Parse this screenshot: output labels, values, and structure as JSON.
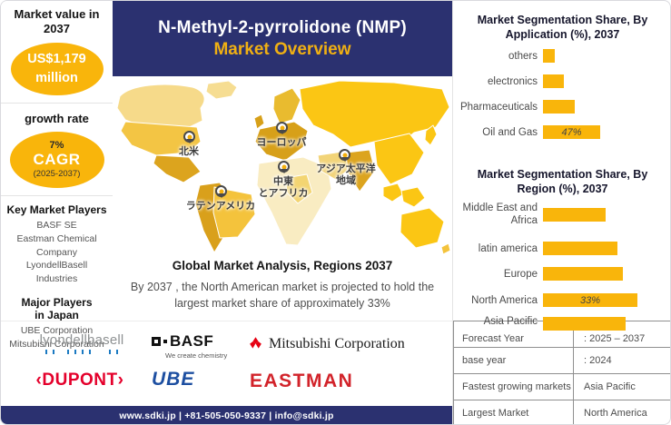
{
  "colors": {
    "navy": "#2B3170",
    "gold": "#F9B50B"
  },
  "sidebar": {
    "market_value_label": "Market value in 2037",
    "market_value_line1": "US$1,179",
    "market_value_line2": "million",
    "growth_rate_label": "growth rate",
    "cagr_percent": "7%",
    "cagr_label": "CAGR",
    "cagr_period": "(2025-2037)",
    "key_players_title": "Key Market Players",
    "key_players": [
      "BASF SE",
      "Eastman Chemical Company",
      "LyondellBasell Industries"
    ],
    "japan_players_title": "Major Players in Japan",
    "japan_players": [
      "UBE Corporation",
      "Mitsubishi Corporation"
    ]
  },
  "header": {
    "title_line1": "N-Methyl-2-pyrrolidone (NMP)",
    "title_line2": "Market Overview"
  },
  "map": {
    "regions": [
      {
        "label": "北米"
      },
      {
        "label": "ヨーロッパ"
      },
      {
        "label": "中東\nとアフリカ"
      },
      {
        "label": "アジア太平洋\n地域"
      },
      {
        "label": "ラテンアメリカ"
      }
    ],
    "caption": "Global Market Analysis, Regions 2037",
    "description": "By 2037 , the North American market is projected to hold the largest market share of approximately 33%"
  },
  "chart_data": [
    {
      "type": "bar",
      "orientation": "horizontal",
      "title": "Market Segmentation Share, By Application (%), 2037",
      "categories": [
        "others",
        "electronics",
        "Pharmaceuticals",
        "Oil and Gas"
      ],
      "values": [
        10,
        17,
        26,
        47
      ],
      "value_labels": [
        "",
        "",
        "",
        "47%"
      ],
      "bar_color": "#F9B50B",
      "xlim": [
        0,
        55
      ],
      "grid": false,
      "legend": "none",
      "note": "only the Oil and Gas bar carries an explicit data label (47%); other values estimated from bar lengths"
    },
    {
      "type": "bar",
      "orientation": "horizontal",
      "title": "Market Segmentation Share, By Region (%), 2037",
      "categories": [
        "Middle East and Africa",
        "latin america",
        "Europe",
        "North America",
        "Asia Pacific"
      ],
      "values": [
        22,
        26,
        28,
        33,
        29
      ],
      "value_labels": [
        "",
        "",
        "",
        "33%",
        ""
      ],
      "bar_color": "#F9B50B",
      "xlim": [
        0,
        40
      ],
      "grid": false,
      "legend": "none",
      "note": "only the North America bar carries an explicit data label (33%); other values estimated from bar lengths"
    }
  ],
  "facts_table": {
    "rows": [
      {
        "label": "Forecast Year",
        "value": ": 2025 – 2037"
      },
      {
        "label": "base year",
        "value": ": 2024"
      },
      {
        "label": "Fastest growing markets",
        "value": "Asia Pacific"
      },
      {
        "label": "Largest Market",
        "value": "North America"
      }
    ]
  },
  "logos": {
    "lyondellbasell": "lyondellbasell",
    "basf": "BASF",
    "basf_tagline": "We create chemistry",
    "mitsubishi": "Mitsubishi Corporation",
    "dupont": "‹DUPONT›",
    "ube": "UBE",
    "eastman": "EASTMAN"
  },
  "footer": {
    "contact": "www.sdki.jp | +81-505-050-9337 | info@sdki.jp"
  }
}
